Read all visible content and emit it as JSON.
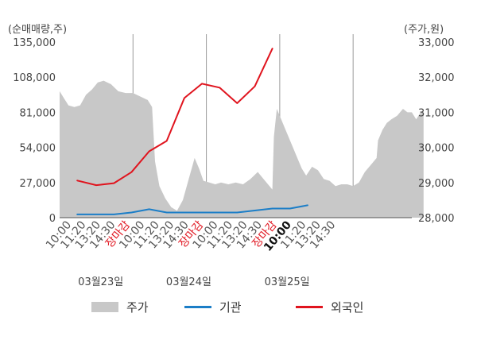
{
  "units": {
    "left": "(순매매량,주)",
    "right": "(주가,원)"
  },
  "legend": {
    "price": "주가",
    "institution": "기관",
    "foreign": "외국인"
  },
  "chart_data": {
    "type": "area",
    "left_axis": {
      "min": 0,
      "max": 135000,
      "ticks": [
        "0",
        "27,000",
        "54,000",
        "81,000",
        "108,000",
        "135,000"
      ]
    },
    "right_axis": {
      "min": 28000,
      "max": 33000,
      "ticks": [
        "28,000",
        "29,000",
        "30,000",
        "31,000",
        "32,000",
        "33,000"
      ]
    },
    "x_ticks": [
      "10:00",
      "11:20",
      "13:20",
      "14:30",
      "장마감",
      "10:00",
      "11:20",
      "13:20",
      "14:30",
      "장마감",
      "10:00",
      "11:20",
      "13:20",
      "14:30",
      "장마감",
      "10:00",
      "11:20",
      "13:20",
      "14:30"
    ],
    "highlight_ticks": [
      4,
      9,
      14
    ],
    "bold_ticks": [
      15
    ],
    "dates": [
      "03월23일",
      "03월24일",
      "03월25일"
    ],
    "slot_count": 24,
    "price_series": {
      "name": "주가",
      "color": "#c8c8c8",
      "points": [
        [
          0,
          31.6
        ],
        [
          0.3,
          31.4
        ],
        [
          0.6,
          31.2
        ],
        [
          1.0,
          31.15
        ],
        [
          1.4,
          31.2
        ],
        [
          1.8,
          31.5
        ],
        [
          2.2,
          31.65
        ],
        [
          2.6,
          31.85
        ],
        [
          3.0,
          31.9
        ],
        [
          3.5,
          31.8
        ],
        [
          4.0,
          31.6
        ],
        [
          4.5,
          31.55
        ],
        [
          5.0,
          31.55
        ],
        [
          5.5,
          31.45
        ],
        [
          6.0,
          31.35
        ],
        [
          6.3,
          31.15
        ],
        [
          6.5,
          29.6
        ],
        [
          6.8,
          28.9
        ],
        [
          7.2,
          28.55
        ],
        [
          7.6,
          28.3
        ],
        [
          8.0,
          28.2
        ],
        [
          8.4,
          28.5
        ],
        [
          8.8,
          29.1
        ],
        [
          9.2,
          29.7
        ],
        [
          9.5,
          29.4
        ],
        [
          9.8,
          29.05
        ],
        [
          10.2,
          29.0
        ],
        [
          10.6,
          28.95
        ],
        [
          11.0,
          29.0
        ],
        [
          11.5,
          28.95
        ],
        [
          12.0,
          29.0
        ],
        [
          12.5,
          28.95
        ],
        [
          13.0,
          29.1
        ],
        [
          13.5,
          29.3
        ],
        [
          14.0,
          29.05
        ],
        [
          14.5,
          28.8
        ],
        [
          14.6,
          30.3
        ],
        [
          14.8,
          31.1
        ],
        [
          15.0,
          30.9
        ],
        [
          15.3,
          30.6
        ],
        [
          15.6,
          30.3
        ],
        [
          15.9,
          30.0
        ],
        [
          16.2,
          29.7
        ],
        [
          16.5,
          29.4
        ],
        [
          16.8,
          29.2
        ],
        [
          17.2,
          29.45
        ],
        [
          17.6,
          29.35
        ],
        [
          18.0,
          29.1
        ],
        [
          18.4,
          29.05
        ],
        [
          18.8,
          28.9
        ],
        [
          19.2,
          28.95
        ],
        [
          19.6,
          28.95
        ],
        [
          20.0,
          28.9
        ],
        [
          20.4,
          29.0
        ],
        [
          20.8,
          29.3
        ],
        [
          21.2,
          29.5
        ],
        [
          21.6,
          29.7
        ],
        [
          21.7,
          30.2
        ],
        [
          22.0,
          30.5
        ],
        [
          22.3,
          30.7
        ],
        [
          22.6,
          30.8
        ],
        [
          23.0,
          30.9
        ],
        [
          23.4,
          31.1
        ],
        [
          23.7,
          31.0
        ],
        [
          24.0,
          31.0
        ],
        [
          24.3,
          30.8
        ],
        [
          24.6,
          31.0
        ],
        [
          24.8,
          31.0
        ]
      ]
    },
    "series": [
      {
        "name": "기관",
        "color": "#1c7ec7",
        "points": [
          [
            1.2,
            2500
          ],
          [
            2.5,
            2500
          ],
          [
            3.7,
            2500
          ],
          [
            4.9,
            4000
          ],
          [
            6.1,
            6500
          ],
          [
            7.3,
            4000
          ],
          [
            8.5,
            4000
          ],
          [
            9.7,
            4000
          ],
          [
            10.9,
            4000
          ],
          [
            12.1,
            4000
          ],
          [
            13.3,
            5500
          ],
          [
            14.5,
            7000
          ],
          [
            15.7,
            7000
          ],
          [
            16.9,
            9500
          ]
        ]
      },
      {
        "name": "외국인",
        "color": "#e0141e",
        "points": [
          [
            1.2,
            28500
          ],
          [
            2.5,
            25000
          ],
          [
            3.7,
            26500
          ],
          [
            4.9,
            35000
          ],
          [
            6.1,
            51000
          ],
          [
            7.3,
            59000
          ],
          [
            8.5,
            92000
          ],
          [
            9.7,
            103000
          ],
          [
            10.9,
            100000
          ],
          [
            12.1,
            88000
          ],
          [
            13.3,
            101000
          ],
          [
            14.5,
            130000
          ]
        ]
      }
    ]
  }
}
